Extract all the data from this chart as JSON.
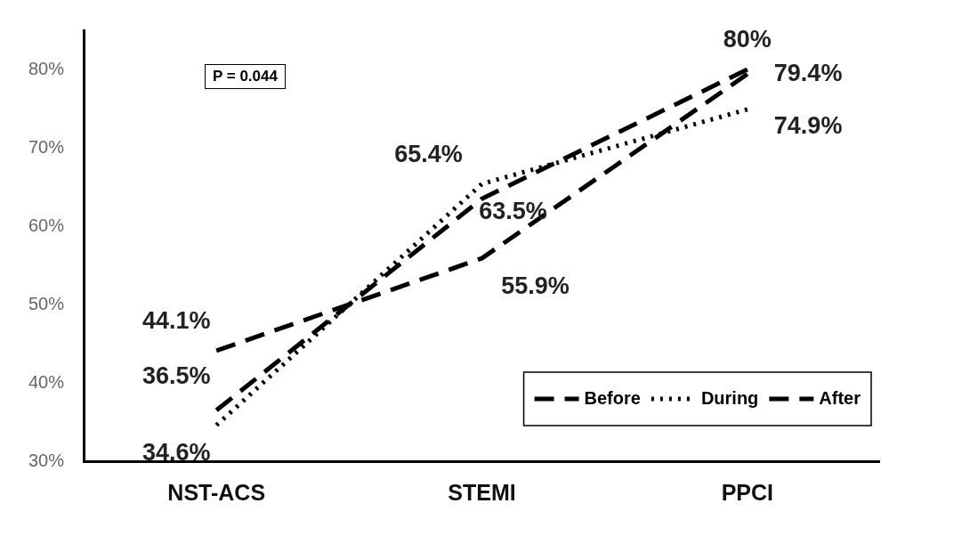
{
  "chart_data": {
    "type": "line",
    "categories": [
      "NST-ACS",
      "STEMI",
      "PPCI"
    ],
    "series": [
      {
        "name": "Before",
        "color": "#000000",
        "line_style": "dashed",
        "values": [
          36.5,
          63.5,
          80
        ],
        "value_labels": [
          "36.5%",
          "63.5%",
          "80%"
        ]
      },
      {
        "name": "During",
        "color": "#000000",
        "line_style": "dotted",
        "values": [
          34.6,
          65.4,
          74.9
        ],
        "value_labels": [
          "34.6%",
          "65.4%",
          "74.9%"
        ]
      },
      {
        "name": "After",
        "color": "#000000",
        "line_style": "dashed",
        "values": [
          44.1,
          55.9,
          79.4
        ],
        "value_labels": [
          "44.1%",
          "55.9%",
          "79.4%"
        ]
      }
    ],
    "ylim": [
      30,
      85
    ],
    "yticks": [
      {
        "value": 30,
        "label": "30%"
      },
      {
        "value": 40,
        "label": "40%"
      },
      {
        "value": 50,
        "label": "50%"
      },
      {
        "value": 60,
        "label": "60%"
      },
      {
        "value": 70,
        "label": "70%"
      },
      {
        "value": 80,
        "label": "80%"
      }
    ],
    "annotations": [
      "P = 0.044"
    ],
    "legend": "bottom right",
    "grid": false,
    "marker": "none"
  }
}
